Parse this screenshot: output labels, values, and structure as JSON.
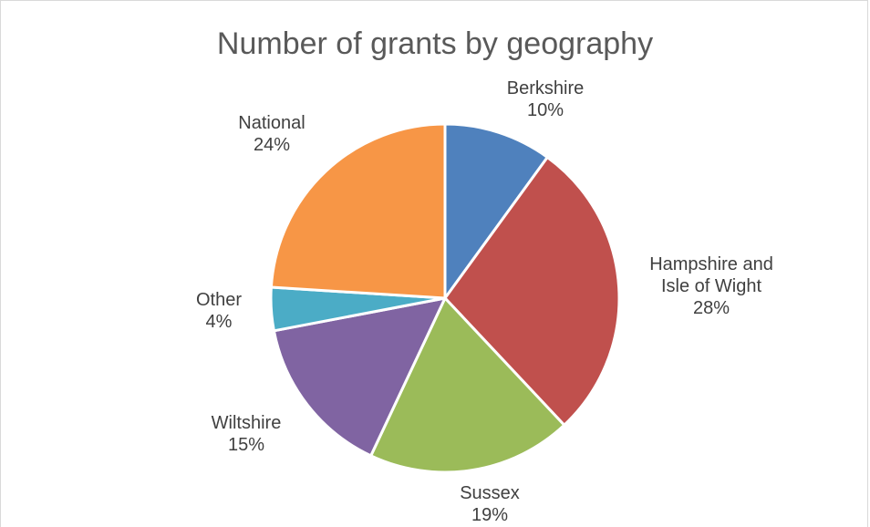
{
  "chart_data": {
    "type": "pie",
    "title": "Number of grants by geography",
    "categories": [
      "Berkshire",
      "Hampshire and Isle of Wight",
      "Sussex",
      "Wiltshire",
      "Other",
      "National"
    ],
    "values": [
      10,
      28,
      19,
      15,
      4,
      24
    ],
    "units": "%",
    "data_labels": [
      {
        "lines": [
          "Berkshire",
          "10%"
        ]
      },
      {
        "lines": [
          "Hampshire and",
          "Isle of Wight",
          "28%"
        ]
      },
      {
        "lines": [
          "Sussex",
          "19%"
        ]
      },
      {
        "lines": [
          "Wiltshire",
          "15%"
        ]
      },
      {
        "lines": [
          "Other",
          "4%"
        ]
      },
      {
        "lines": [
          "National",
          "24%"
        ]
      }
    ],
    "colors": [
      "#4f81bd",
      "#c0504d",
      "#9bbb59",
      "#8064a2",
      "#4bacc6",
      "#f79646"
    ],
    "start_angle_deg": 0,
    "direction": "clockwise",
    "legend": "none"
  }
}
